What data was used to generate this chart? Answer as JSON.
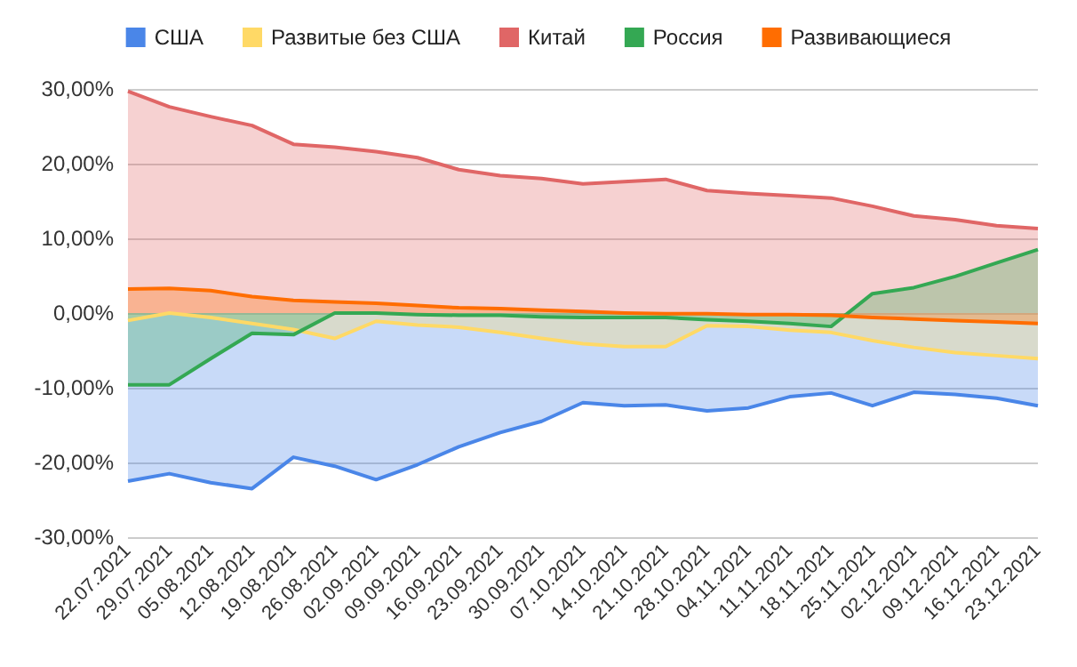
{
  "chart_data": {
    "type": "area",
    "categories": [
      "22.07.2021",
      "29.07.2021",
      "05.08.2021",
      "12.08.2021",
      "19.08.2021",
      "26.08.2021",
      "02.09.2021",
      "09.09.2021",
      "16.09.2021",
      "23.09.2021",
      "30.09.2021",
      "07.10.2021",
      "14.10.2021",
      "21.10.2021",
      "28.10.2021",
      "04.11.2021",
      "11.11.2021",
      "18.11.2021",
      "25.11.2021",
      "02.12.2021",
      "09.12.2021",
      "16.12.2021",
      "23.12.2021"
    ],
    "series": [
      {
        "name": "США",
        "color": "#4a86e8",
        "values": [
          -22.5,
          -21.5,
          -22.7,
          -23.5,
          -19.3,
          -20.5,
          -22.3,
          -20.3,
          -17.9,
          -16.0,
          -14.5,
          -12.0,
          -12.4,
          -12.3,
          -13.1,
          -12.7,
          -11.2,
          -10.7,
          -12.4,
          -10.6,
          -10.9,
          -11.4,
          -12.4
        ]
      },
      {
        "name": "Развитые без США",
        "color": "#ffd966",
        "values": [
          -1.0,
          0.0,
          -0.6,
          -1.4,
          -2.2,
          -3.4,
          -1.1,
          -1.6,
          -1.9,
          -2.6,
          -3.4,
          -4.1,
          -4.5,
          -4.5,
          -1.7,
          -1.8,
          -2.3,
          -2.6,
          -3.7,
          -4.6,
          -5.3,
          -5.7,
          -6.1
        ]
      },
      {
        "name": "Китай",
        "color": "#e06666",
        "values": [
          29.7,
          27.6,
          26.3,
          25.1,
          22.6,
          22.2,
          21.6,
          20.8,
          19.2,
          18.4,
          18.0,
          17.3,
          17.6,
          17.9,
          16.4,
          16.0,
          15.7,
          15.4,
          14.3,
          13.0,
          12.5,
          11.7,
          11.3
        ]
      },
      {
        "name": "Россия",
        "color": "#34a853",
        "values": [
          -9.6,
          -9.6,
          -6.1,
          -2.7,
          -2.9,
          0.0,
          0.0,
          -0.2,
          -0.3,
          -0.3,
          -0.5,
          -0.6,
          -0.6,
          -0.6,
          -0.9,
          -1.1,
          -1.4,
          -1.8,
          2.6,
          3.4,
          4.9,
          6.7,
          8.5
        ]
      },
      {
        "name": "Развивающиеся",
        "color": "#ff6d01",
        "values": [
          3.2,
          3.3,
          3.0,
          2.2,
          1.7,
          1.5,
          1.3,
          1.0,
          0.7,
          0.6,
          0.4,
          0.2,
          0.0,
          -0.1,
          -0.1,
          -0.2,
          -0.2,
          -0.3,
          -0.6,
          -0.8,
          -1.0,
          -1.2,
          -1.4
        ]
      }
    ],
    "ylim": [
      -30,
      30
    ],
    "yticks": [
      {
        "value": -30,
        "label": "-30,00%"
      },
      {
        "value": -20,
        "label": "-20,00%"
      },
      {
        "value": -10,
        "label": "-10,00%"
      },
      {
        "value": 0,
        "label": "0,00%"
      },
      {
        "value": 10,
        "label": "10,00%"
      },
      {
        "value": 20,
        "label": "20,00%"
      },
      {
        "value": 30,
        "label": "30,00%"
      }
    ],
    "grid": "y",
    "legend": "top",
    "marker": "none",
    "line_style": "solid"
  }
}
